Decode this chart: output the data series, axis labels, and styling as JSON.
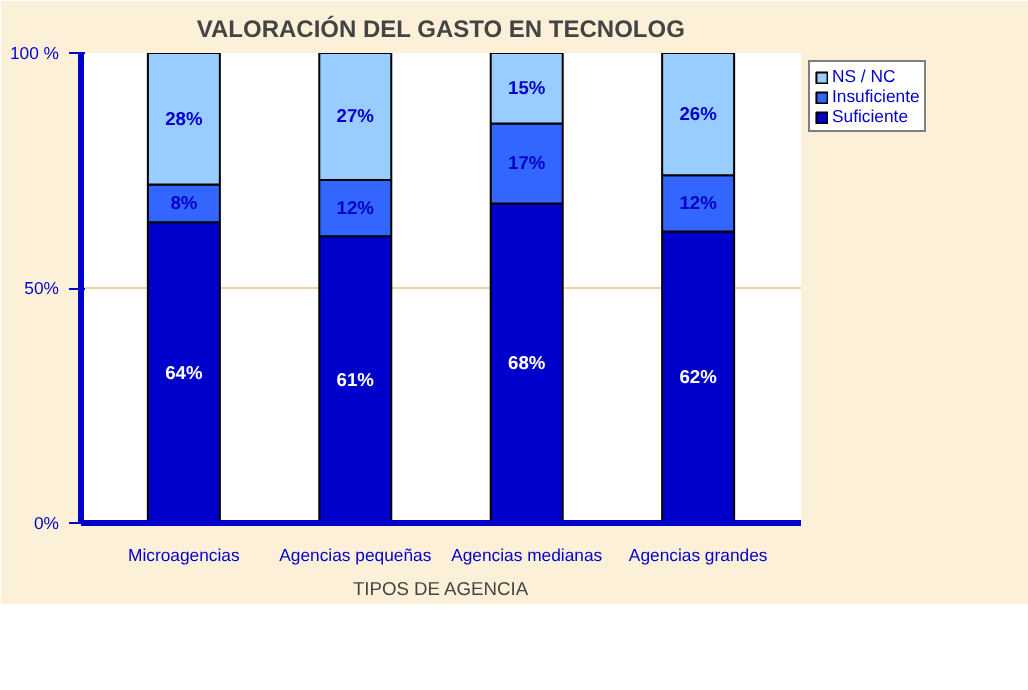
{
  "chart_data": {
    "type": "bar",
    "title": "VALORACIÓN DEL GASTO EN TECNOLOG",
    "xlabel": "TIPOS DE AGENCIA",
    "categories": [
      "Microagencias",
      "Agencias pequeñas",
      "Agencias medianas",
      "Agencias grandes"
    ],
    "stacked": true,
    "series": [
      {
        "name": "Suficiente",
        "color": "#0000cc",
        "values": [
          64,
          61,
          68,
          62
        ],
        "value_labels": [
          "64%",
          "61%",
          "68%",
          "62%"
        ]
      },
      {
        "name": "Insuficiente",
        "color": "#3366ff",
        "values": [
          8,
          12,
          17,
          12
        ],
        "value_labels": [
          "8%",
          "12%",
          "17%",
          "12%"
        ]
      },
      {
        "name": "NS / NC",
        "color": "#99ccff",
        "values": [
          28,
          27,
          15,
          26
        ],
        "value_labels": [
          "28%",
          "27%",
          "15%",
          "26%"
        ]
      }
    ],
    "ylim": [
      0,
      100
    ],
    "yticks": [
      {
        "value": 0,
        "label": "0%"
      },
      {
        "value": 50,
        "label": "50%"
      },
      {
        "value": 100,
        "label": "100 %"
      }
    ],
    "ref_lines": [
      {
        "axis": "y",
        "value": 50,
        "color": "#f3d3a0"
      }
    ],
    "legend": "right",
    "data_labels": true
  }
}
